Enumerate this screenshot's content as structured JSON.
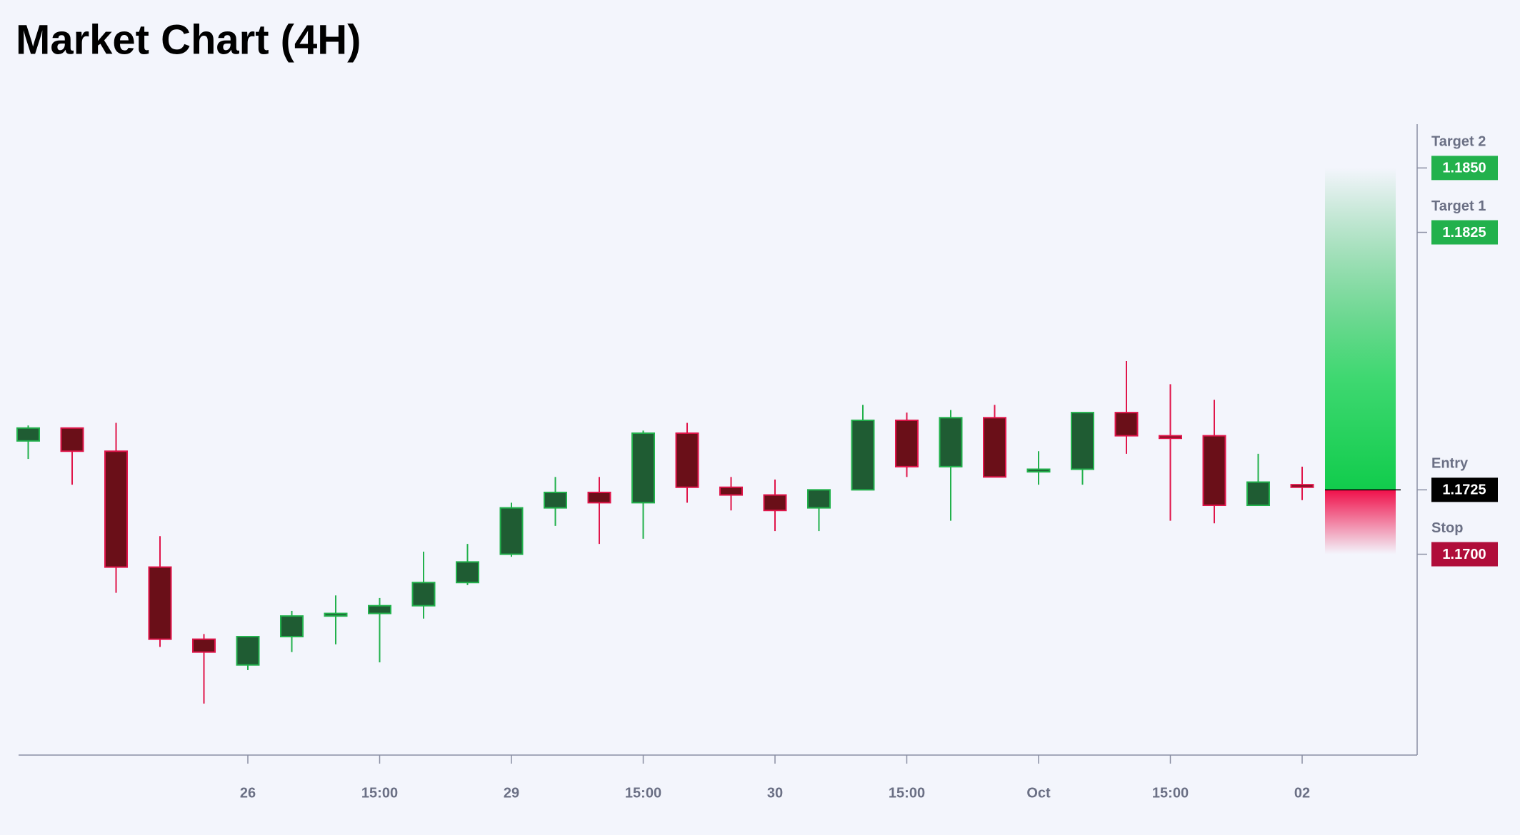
{
  "chart_data": {
    "type": "candlestick",
    "title": "Market Chart (4H)",
    "categories": [
      null,
      null,
      null,
      null,
      null,
      "26",
      null,
      null,
      "15:00",
      null,
      null,
      "29",
      null,
      null,
      "15:00",
      null,
      null,
      "30",
      null,
      null,
      "15:00",
      null,
      null,
      "Oct",
      null,
      null,
      "15:00",
      null,
      null,
      "02"
    ],
    "open": [
      1.1744,
      1.1749,
      1.174,
      1.1695,
      1.1667,
      1.1657,
      1.1668,
      1.1676,
      1.1677,
      1.168,
      1.1689,
      1.17,
      1.1718,
      1.1724,
      1.172,
      1.1747,
      1.1726,
      1.1723,
      1.1718,
      1.1725,
      1.1752,
      1.1734,
      1.1753,
      1.1732,
      1.1733,
      1.1755,
      1.1746,
      1.1746,
      1.1719,
      1.1727
    ],
    "high": [
      1.175,
      1.1749,
      1.1751,
      1.1707,
      1.1669,
      1.1668,
      1.1678,
      1.1684,
      1.1683,
      1.1701,
      1.1704,
      1.172,
      1.173,
      1.173,
      1.1748,
      1.1751,
      1.173,
      1.1729,
      1.1725,
      1.1758,
      1.1755,
      1.1756,
      1.1758,
      1.174,
      1.1755,
      1.1775,
      1.1766,
      1.176,
      1.1739,
      1.1734
    ],
    "low": [
      1.1737,
      1.1727,
      1.1685,
      1.1664,
      1.1642,
      1.1655,
      1.1662,
      1.1665,
      1.1658,
      1.1675,
      1.1688,
      1.1699,
      1.1711,
      1.1704,
      1.1706,
      1.172,
      1.1717,
      1.1709,
      1.1709,
      1.1725,
      1.173,
      1.1713,
      1.173,
      1.1727,
      1.1727,
      1.1739,
      1.1713,
      1.1712,
      1.1719,
      1.1721
    ],
    "close": [
      1.1749,
      1.174,
      1.1695,
      1.1667,
      1.1662,
      1.1668,
      1.1676,
      1.1677,
      1.168,
      1.1689,
      1.1697,
      1.1718,
      1.1724,
      1.172,
      1.1747,
      1.1726,
      1.1723,
      1.1717,
      1.1725,
      1.1752,
      1.1734,
      1.1753,
      1.173,
      1.1733,
      1.1755,
      1.1746,
      1.1745,
      1.1719,
      1.1728,
      1.1726
    ],
    "up_color": "#22b14c",
    "down_color": "#e0154a",
    "ylim": [
      1.1622,
      1.1867
    ],
    "levels": [
      {
        "name": "Target 2",
        "price": {
          "value": 1.185,
          "label": "1.1850"
        },
        "color": "#22b14c"
      },
      {
        "name": "Target 1",
        "price": {
          "value": 1.1825,
          "label": "1.1825"
        },
        "color": "#22b14c"
      },
      {
        "name": "Entry",
        "price": 1.1725,
        "color": "#000000"
      },
      {
        "name": "Stop",
        "price": {
          "value": 1.17,
          "label": "1.1700"
        },
        "color": "#b00d3a"
      }
    ]
  }
}
